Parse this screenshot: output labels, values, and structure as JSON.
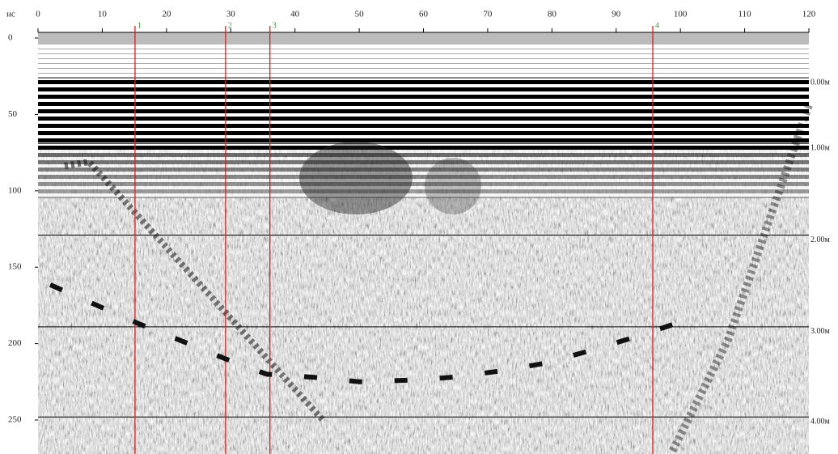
{
  "chart_data": {
    "type": "radargram",
    "y_label": "нс",
    "xlim": [
      0,
      120
    ],
    "xticks": [
      0,
      10,
      20,
      30,
      40,
      50,
      60,
      70,
      80,
      90,
      100,
      110,
      120
    ],
    "ylim": [
      0,
      272
    ],
    "yticks": [
      0,
      50,
      100,
      150,
      200,
      250
    ],
    "depth_lines": [
      {
        "value": 26,
        "label": "0.00м"
      },
      {
        "value": 69,
        "label": "1.00м"
      },
      {
        "value": 129,
        "label": "2.00м"
      },
      {
        "value": 189,
        "label": "3.00м"
      },
      {
        "value": 248,
        "label": "4.00м"
      }
    ],
    "markers": [
      {
        "x": 15.1,
        "label": "1"
      },
      {
        "x": 29.2,
        "label": "2"
      },
      {
        "x": 36.1,
        "label": "3"
      },
      {
        "x": 95.7,
        "label": "4"
      }
    ],
    "marker_color": "#d62020",
    "boundary": {
      "color": "#111111",
      "x": [
        1.9,
        9.2,
        15.7,
        22.8,
        29.2,
        35.6,
        42.8,
        50.1,
        57.3,
        64.6,
        71.8,
        78.7,
        85.6,
        92.7,
        99.2
      ],
      "values": [
        161.5,
        175,
        187,
        199,
        210,
        220,
        222,
        225,
        224,
        222,
        218,
        213,
        205,
        196,
        187
      ]
    }
  }
}
